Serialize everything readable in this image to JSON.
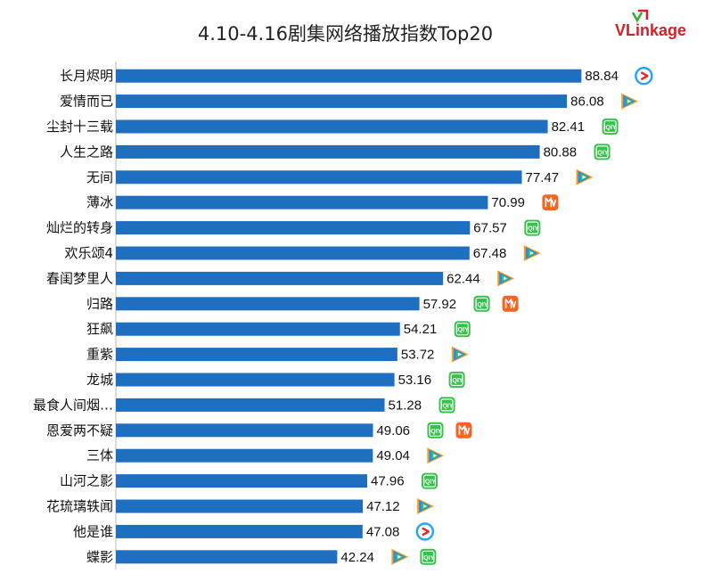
{
  "header": {
    "title": "4.10-4.16剧集网络播放指数Top20"
  },
  "logo": {
    "brand_first": "V",
    "brand_rest": "Linkage",
    "color": "#d61f26"
  },
  "colors": {
    "bar": "#1f6fc0",
    "iqiyi": "#33c24a",
    "mgtv": "#f26522",
    "tencent_blue": "#2a8ee8",
    "tencent_orange": "#ff9f1a",
    "tencent_green": "#35c35c",
    "youku_red": "#e8252d",
    "youku_blue": "#1fa3ff"
  },
  "chart_data": {
    "type": "bar",
    "orientation": "horizontal",
    "title": "4.10-4.16剧集网络播放指数Top20",
    "categories": [
      "长月烬明",
      "爱情而已",
      "尘封十三载",
      "人生之路",
      "无间",
      "薄冰",
      "灿烂的转身",
      "欢乐颂4",
      "春闺梦里人",
      "归路",
      "狂飙",
      "重紫",
      "龙城",
      "最食人间烟…",
      "恩爱两不疑",
      "三体",
      "山河之影",
      "花琉璃轶闻",
      "他是谁",
      "蝶影"
    ],
    "values": [
      88.84,
      86.08,
      82.41,
      80.88,
      77.47,
      70.99,
      67.57,
      67.48,
      62.44,
      57.92,
      54.21,
      53.72,
      53.16,
      51.28,
      49.06,
      49.04,
      47.96,
      47.12,
      47.08,
      42.24
    ],
    "platforms": [
      [
        "youku"
      ],
      [
        "tencent"
      ],
      [
        "iqiyi"
      ],
      [
        "iqiyi"
      ],
      [
        "tencent"
      ],
      [
        "mgtv"
      ],
      [
        "iqiyi"
      ],
      [
        "tencent"
      ],
      [
        "tencent"
      ],
      [
        "iqiyi",
        "mgtv"
      ],
      [
        "iqiyi"
      ],
      [
        "tencent"
      ],
      [
        "iqiyi"
      ],
      [
        "iqiyi"
      ],
      [
        "iqiyi",
        "mgtv"
      ],
      [
        "tencent"
      ],
      [
        "iqiyi"
      ],
      [
        "tencent"
      ],
      [
        "youku"
      ],
      [
        "tencent",
        "iqiyi"
      ]
    ],
    "xlim": [
      0,
      100
    ],
    "xlabel": "",
    "ylabel": "",
    "grid": false,
    "legend": "none"
  }
}
